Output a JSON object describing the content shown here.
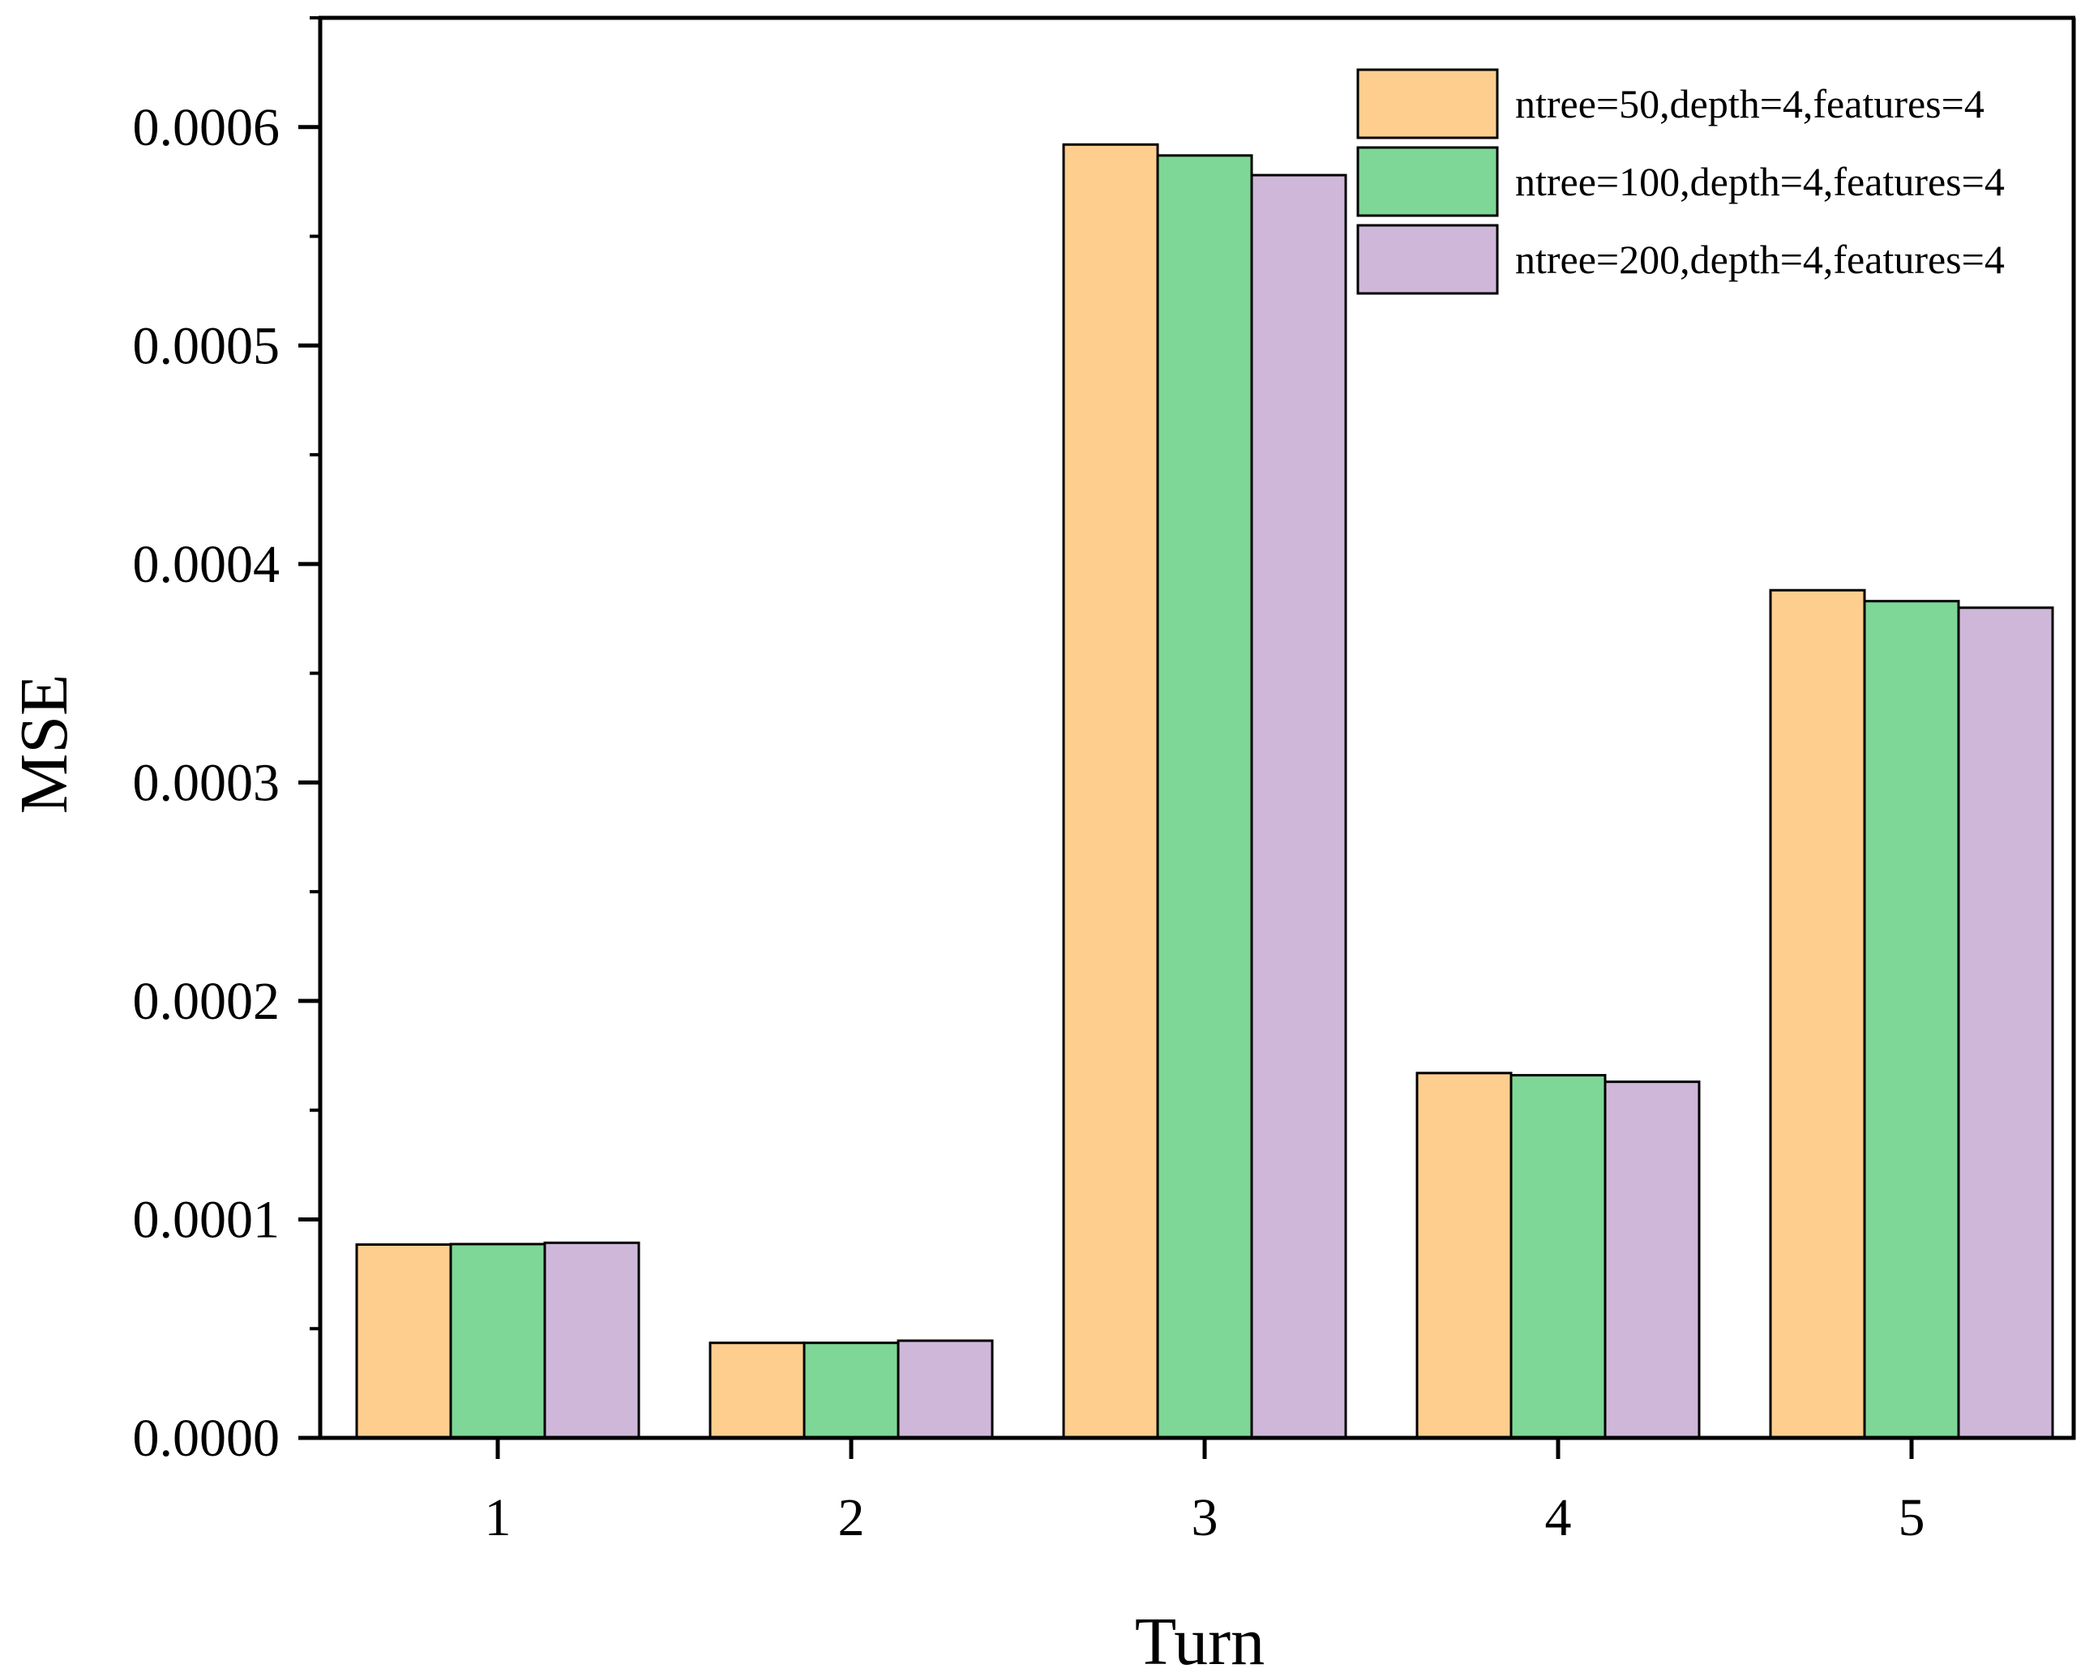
{
  "chart_data": {
    "type": "bar",
    "title": "",
    "xlabel": "Turn",
    "ylabel": "MSE",
    "categories": [
      "1",
      "2",
      "3",
      "4",
      "5"
    ],
    "ylim": [
      0,
      0.00065
    ],
    "yticks": [
      "0.0000",
      "0.0001",
      "0.0002",
      "0.0003",
      "0.0004",
      "0.0005",
      "0.0006"
    ],
    "ytick_values": [
      0,
      0.0001,
      0.0002,
      0.0003,
      0.0004,
      0.0005,
      0.0006
    ],
    "grid": false,
    "legend_position": "top-right",
    "series": [
      {
        "name": "ntree=50,depth=4,features=4",
        "color": "#FECE8E",
        "values": [
          8.85e-05,
          4.35e-05,
          0.000592,
          0.000167,
          0.000388
        ]
      },
      {
        "name": "ntree=100,depth=4,features=4",
        "color": "#7ED796",
        "values": [
          8.87e-05,
          4.35e-05,
          0.000587,
          0.000166,
          0.000383
        ]
      },
      {
        "name": "ntree=200,depth=4,features=4",
        "color": "#CFB7DA",
        "values": [
          8.93e-05,
          4.45e-05,
          0.000578,
          0.000163,
          0.00038
        ]
      }
    ]
  }
}
